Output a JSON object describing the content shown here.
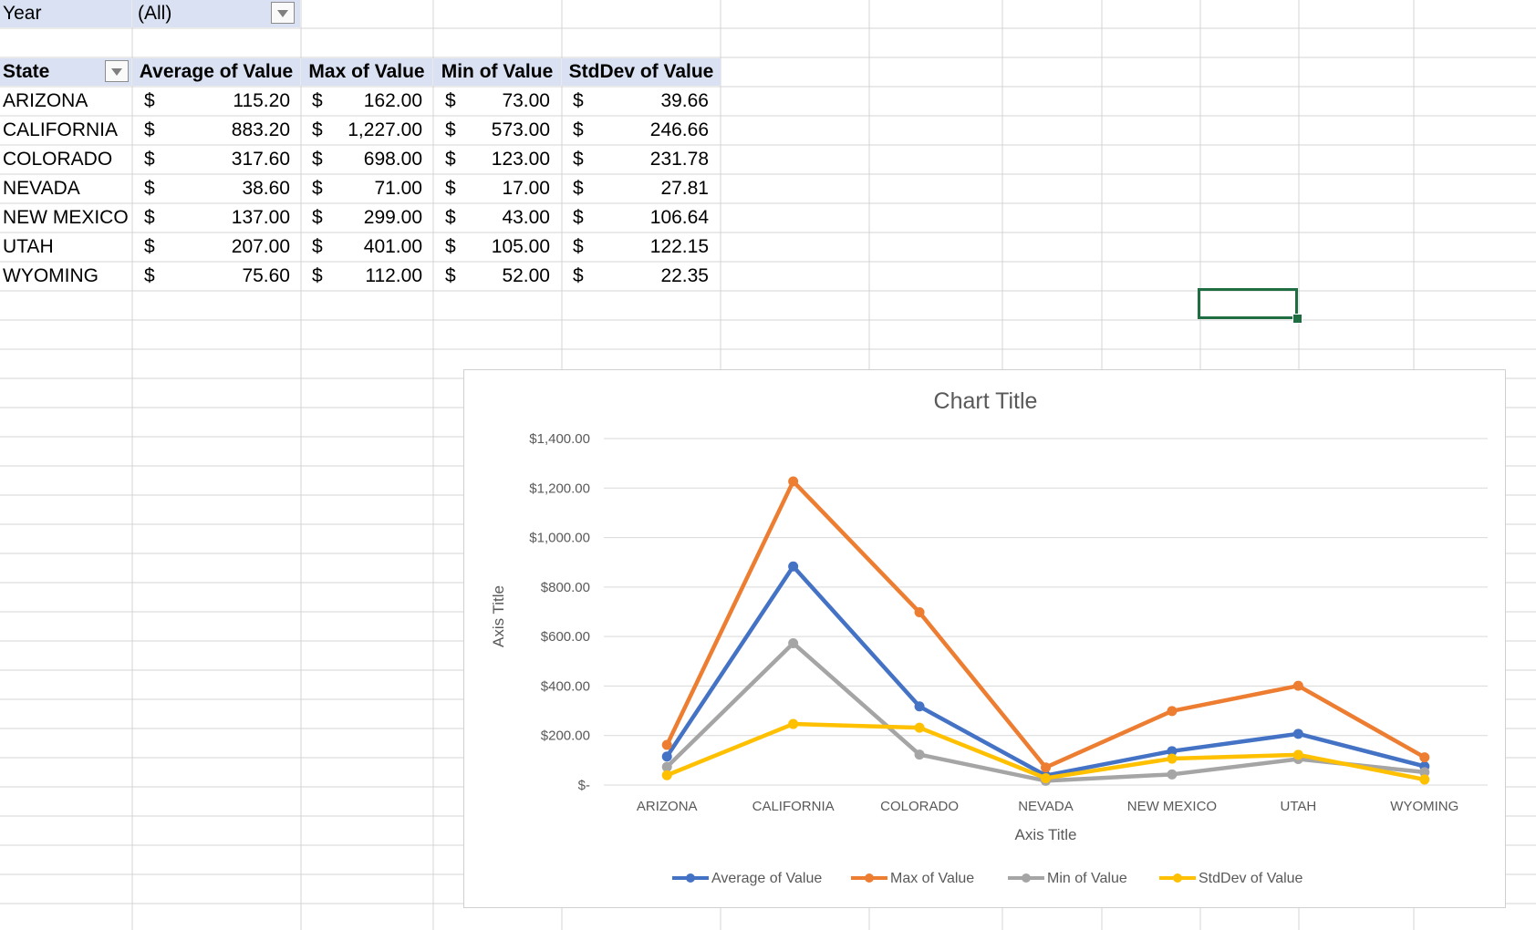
{
  "pivot": {
    "filter": {
      "label": "Year",
      "value": "(All)"
    },
    "headers": [
      "State",
      "Average of Value",
      "Max of Value",
      "Min of Value",
      "StdDev of Value"
    ],
    "currency_symbol": "$",
    "rows": [
      {
        "state": "ARIZONA",
        "avg": "115.20",
        "max": "162.00",
        "min": "73.00",
        "std": "39.66"
      },
      {
        "state": "CALIFORNIA",
        "avg": "883.20",
        "max": "1,227.00",
        "min": "573.00",
        "std": "246.66"
      },
      {
        "state": "COLORADO",
        "avg": "317.60",
        "max": "698.00",
        "min": "123.00",
        "std": "231.78"
      },
      {
        "state": "NEVADA",
        "avg": "38.60",
        "max": "71.00",
        "min": "17.00",
        "std": "27.81"
      },
      {
        "state": "NEW MEXICO",
        "avg": "137.00",
        "max": "299.00",
        "min": "43.00",
        "std": "106.64"
      },
      {
        "state": "UTAH",
        "avg": "207.00",
        "max": "401.00",
        "min": "105.00",
        "std": "122.15"
      },
      {
        "state": "WYOMING",
        "avg": "75.60",
        "max": "112.00",
        "min": "52.00",
        "std": "22.35"
      }
    ]
  },
  "colors": {
    "header_fill": "#d9e1f2",
    "gridline": "#d4d4d4",
    "selection": "#1e6e42",
    "series": [
      "#4472c4",
      "#ed7d31",
      "#a5a5a5",
      "#ffc000"
    ]
  },
  "chart_data": {
    "type": "line",
    "title": "Chart Title",
    "xlabel": "Axis Title",
    "ylabel": "Axis Title",
    "categories": [
      "ARIZONA",
      "CALIFORNIA",
      "COLORADO",
      "NEVADA",
      "NEW MEXICO",
      "UTAH",
      "WYOMING"
    ],
    "ylim": [
      0,
      1400
    ],
    "yticks": [
      0,
      200,
      400,
      600,
      800,
      1000,
      1200,
      1400
    ],
    "ytick_labels": [
      "$-",
      "$200.00",
      "$400.00",
      "$600.00",
      "$800.00",
      "$1,000.00",
      "$1,200.00",
      "$1,400.00"
    ],
    "grid": true,
    "legend": "bottom",
    "series": [
      {
        "name": "Average of Value",
        "values": [
          115.2,
          883.2,
          317.6,
          38.6,
          137.0,
          207.0,
          75.6
        ]
      },
      {
        "name": "Max of Value",
        "values": [
          162.0,
          1227.0,
          698.0,
          71.0,
          299.0,
          401.0,
          112.0
        ]
      },
      {
        "name": "Min of Value",
        "values": [
          73.0,
          573.0,
          123.0,
          17.0,
          43.0,
          105.0,
          52.0
        ]
      },
      {
        "name": "StdDev of Value",
        "values": [
          39.66,
          246.66,
          231.78,
          27.81,
          106.64,
          122.15,
          22.35
        ]
      }
    ]
  }
}
